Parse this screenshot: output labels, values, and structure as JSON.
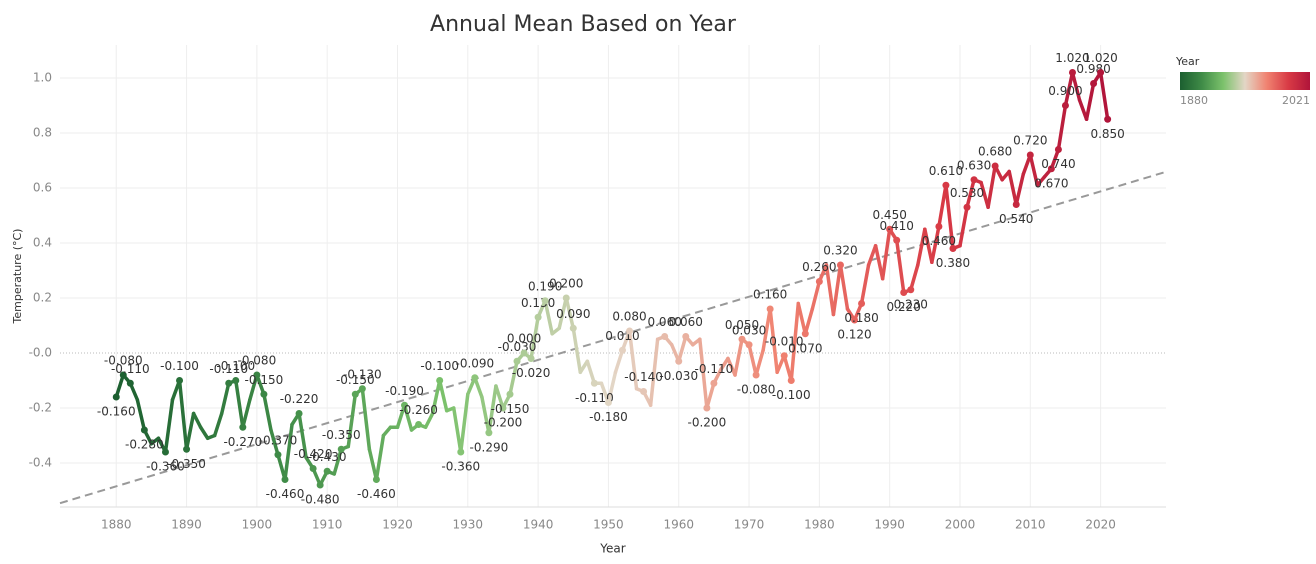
{
  "chart_data": {
    "type": "line",
    "title": "Annual Mean Based on Year",
    "x_label": "Year",
    "y_label": "Temperature (°C)",
    "x": [
      1880,
      1881,
      1882,
      1883,
      1884,
      1885,
      1886,
      1887,
      1888,
      1889,
      1890,
      1891,
      1892,
      1893,
      1894,
      1895,
      1896,
      1897,
      1898,
      1899,
      1900,
      1901,
      1902,
      1903,
      1904,
      1905,
      1906,
      1907,
      1908,
      1909,
      1910,
      1911,
      1912,
      1913,
      1914,
      1915,
      1916,
      1917,
      1918,
      1919,
      1920,
      1921,
      1922,
      1923,
      1924,
      1925,
      1926,
      1927,
      1928,
      1929,
      1930,
      1931,
      1932,
      1933,
      1934,
      1935,
      1936,
      1937,
      1938,
      1939,
      1940,
      1941,
      1942,
      1943,
      1944,
      1945,
      1946,
      1947,
      1948,
      1949,
      1950,
      1951,
      1952,
      1953,
      1954,
      1955,
      1956,
      1957,
      1958,
      1959,
      1960,
      1961,
      1962,
      1963,
      1964,
      1965,
      1966,
      1967,
      1968,
      1969,
      1970,
      1971,
      1972,
      1973,
      1974,
      1975,
      1976,
      1977,
      1978,
      1979,
      1980,
      1981,
      1982,
      1983,
      1984,
      1985,
      1986,
      1987,
      1988,
      1989,
      1990,
      1991,
      1992,
      1993,
      1994,
      1995,
      1996,
      1997,
      1998,
      1999,
      2000,
      2001,
      2002,
      2003,
      2004,
      2005,
      2006,
      2007,
      2008,
      2009,
      2010,
      2011,
      2012,
      2013,
      2014,
      2015,
      2016,
      2017,
      2018,
      2019,
      2020,
      2021
    ],
    "values": [
      -0.16,
      -0.08,
      -0.11,
      -0.17,
      -0.28,
      -0.33,
      -0.31,
      -0.36,
      -0.17,
      -0.1,
      -0.35,
      -0.22,
      -0.27,
      -0.31,
      -0.3,
      -0.22,
      -0.11,
      -0.1,
      -0.27,
      -0.17,
      -0.08,
      -0.15,
      -0.28,
      -0.37,
      -0.46,
      -0.26,
      -0.22,
      -0.38,
      -0.42,
      -0.48,
      -0.43,
      -0.44,
      -0.35,
      -0.34,
      -0.15,
      -0.13,
      -0.35,
      -0.46,
      -0.3,
      -0.27,
      -0.27,
      -0.19,
      -0.28,
      -0.26,
      -0.27,
      -0.22,
      -0.1,
      -0.21,
      -0.2,
      -0.36,
      -0.15,
      -0.09,
      -0.16,
      -0.29,
      -0.12,
      -0.2,
      -0.15,
      -0.03,
      0,
      -0.02,
      0.13,
      0.19,
      0.07,
      0.09,
      0.2,
      0.09,
      -0.07,
      -0.03,
      -0.11,
      -0.11,
      -0.18,
      -0.07,
      0.01,
      0.08,
      -0.13,
      -0.14,
      -0.19,
      0.05,
      0.06,
      0.03,
      -0.03,
      0.06,
      0.03,
      0.05,
      -0.2,
      -0.11,
      -0.06,
      -0.02,
      -0.08,
      0.05,
      0.03,
      -0.08,
      0.01,
      0.16,
      -0.07,
      -0.01,
      -0.1,
      0.18,
      0.07,
      0.16,
      0.26,
      0.32,
      0.14,
      0.32,
      0.16,
      0.12,
      0.18,
      0.32,
      0.39,
      0.27,
      0.45,
      0.41,
      0.22,
      0.23,
      0.32,
      0.45,
      0.33,
      0.46,
      0.61,
      0.38,
      0.39,
      0.53,
      0.63,
      0.62,
      0.53,
      0.68,
      0.63,
      0.66,
      0.54,
      0.65,
      0.72,
      0.61,
      0.64,
      0.67,
      0.74,
      0.9,
      1.02,
      0.92,
      0.85,
      0.98,
      1.02,
      0.85
    ],
    "value_labels": [
      "-0.160",
      "-0.080",
      "-0.110",
      null,
      "-0.280",
      null,
      null,
      "-0.360",
      null,
      "-0.100",
      "-0.350",
      null,
      null,
      null,
      null,
      null,
      "-0.110",
      "-0.100",
      "-0.270",
      null,
      "-0.080",
      "-0.150",
      null,
      "-0.370",
      "-0.460",
      null,
      "-0.220",
      null,
      "-0.420",
      "-0.480",
      "-0.430",
      null,
      "-0.350",
      null,
      "-0.150",
      "-0.130",
      null,
      "-0.460",
      null,
      null,
      null,
      "-0.190",
      null,
      "-0.260",
      null,
      null,
      "-0.100",
      null,
      null,
      "-0.360",
      null,
      "-0.090",
      null,
      "-0.290",
      null,
      "-0.200",
      "-0.150",
      "-0.030",
      "0.000",
      "-0.020",
      "0.130",
      "0.190",
      null,
      null,
      "0.200",
      "0.090",
      null,
      null,
      "-0.110",
      null,
      "-0.180",
      null,
      "0.010",
      "0.080",
      null,
      "-0.140",
      null,
      null,
      "0.060",
      null,
      "-0.030",
      "0.060",
      null,
      null,
      "-0.200",
      "-0.110",
      null,
      null,
      null,
      "0.050",
      "0.030",
      "-0.080",
      null,
      "0.160",
      null,
      "-0.010",
      "-0.100",
      null,
      "0.070",
      null,
      "0.260",
      null,
      null,
      "0.320",
      null,
      "0.120",
      "0.180",
      null,
      null,
      null,
      "0.450",
      "0.410",
      "0.220",
      "0.230",
      null,
      null,
      null,
      "0.460",
      "0.610",
      "0.380",
      null,
      "0.530",
      "0.630",
      null,
      null,
      "0.680",
      null,
      null,
      "0.540",
      null,
      "0.720",
      null,
      null,
      "0.670",
      "0.740",
      "0.900",
      "1.020",
      null,
      null,
      "0.980",
      "1.020",
      "0.850"
    ],
    "colors": [
      "#1c5f30",
      "#3f8b47",
      "#7cc26c",
      "#e3d6c6",
      "#f08371",
      "#d83a45",
      "#b0143a"
    ],
    "color_legend_title": "Year",
    "color_range": [
      1880,
      2021
    ],
    "xlim": [
      1872,
      2029.3
    ],
    "xticks": [
      1880,
      1890,
      1900,
      1910,
      1920,
      1930,
      1940,
      1950,
      1960,
      1970,
      1980,
      1990,
      2000,
      2010,
      2020
    ],
    "ylim": [
      -0.56,
      1.12
    ],
    "yticks": [
      -0.4,
      -0.2,
      {
        "value": 0,
        "label": "-0.0"
      },
      0.2,
      0.4,
      0.6,
      0.8,
      {
        "value": 1,
        "label": "1.0"
      }
    ],
    "grid": true,
    "trendline": true
  }
}
